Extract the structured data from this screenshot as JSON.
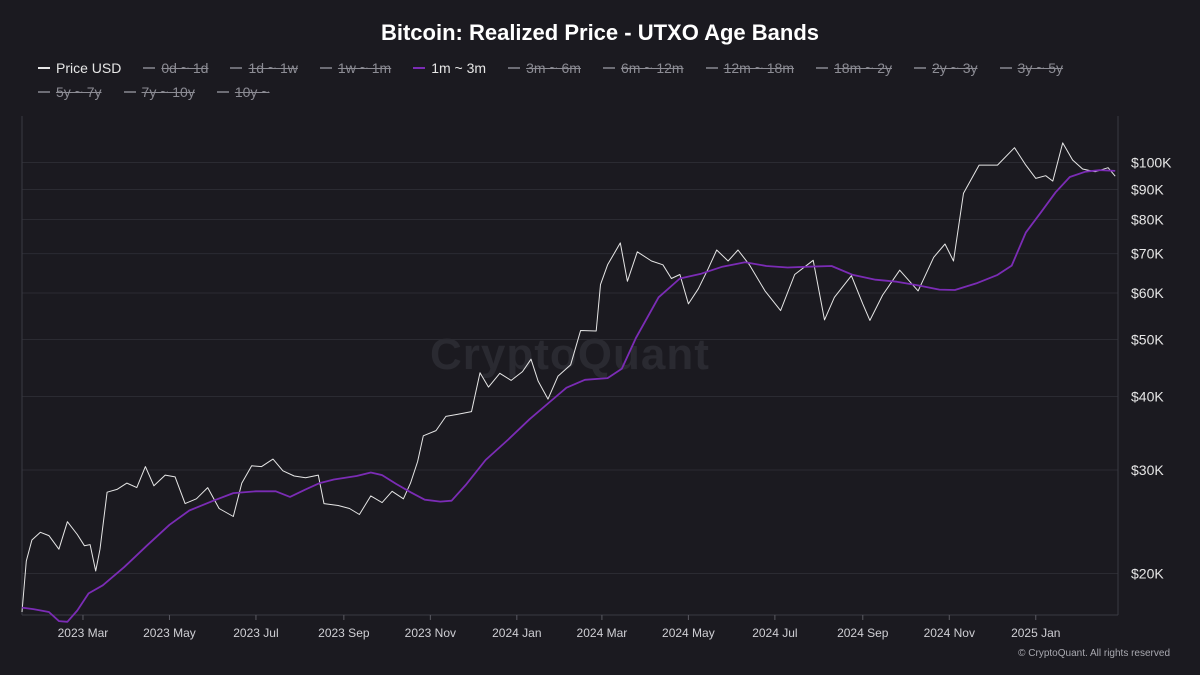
{
  "chart_data": {
    "type": "line",
    "title": "Bitcoin: Realized Price - UTXO Age Bands",
    "xlabel": "",
    "ylabel": "",
    "y_scale": "log",
    "ylim": [
      17000,
      120000
    ],
    "xlim": [
      "2023-01-17",
      "2025-02-28"
    ],
    "grid": true,
    "legend_position": "top",
    "watermark": "CryptoQuant",
    "footer": "© CryptoQuant. All rights reserved",
    "x_ticks": [
      {
        "label": "2023 Mar",
        "date": "2023-03-01"
      },
      {
        "label": "2023 May",
        "date": "2023-05-01"
      },
      {
        "label": "2023 Jul",
        "date": "2023-07-01"
      },
      {
        "label": "2023 Sep",
        "date": "2023-09-01"
      },
      {
        "label": "2023 Nov",
        "date": "2023-11-01"
      },
      {
        "label": "2024 Jan",
        "date": "2024-01-01"
      },
      {
        "label": "2024 Mar",
        "date": "2024-03-01"
      },
      {
        "label": "2024 May",
        "date": "2024-05-01"
      },
      {
        "label": "2024 Jul",
        "date": "2024-07-01"
      },
      {
        "label": "2024 Sep",
        "date": "2024-09-01"
      },
      {
        "label": "2024 Nov",
        "date": "2024-11-01"
      },
      {
        "label": "2025 Jan",
        "date": "2025-01-01"
      }
    ],
    "y_ticks": [
      {
        "label": "$20K",
        "value": 20000
      },
      {
        "label": "$30K",
        "value": 30000
      },
      {
        "label": "$40K",
        "value": 40000
      },
      {
        "label": "$50K",
        "value": 50000
      },
      {
        "label": "$60K",
        "value": 60000
      },
      {
        "label": "$70K",
        "value": 70000
      },
      {
        "label": "$80K",
        "value": 80000
      },
      {
        "label": "$90K",
        "value": 90000
      },
      {
        "label": "$100K",
        "value": 100000
      }
    ],
    "legend": [
      {
        "label": "Price USD",
        "color": "#e6e6e6",
        "active": true
      },
      {
        "label": "0d ~ 1d",
        "color": "#6d6d75",
        "active": false
      },
      {
        "label": "1d ~ 1w",
        "color": "#6d6d75",
        "active": false
      },
      {
        "label": "1w ~ 1m",
        "color": "#6d6d75",
        "active": false
      },
      {
        "label": "1m ~ 3m",
        "color": "#7b2cb5",
        "active": true
      },
      {
        "label": "3m ~ 6m",
        "color": "#6d6d75",
        "active": false
      },
      {
        "label": "6m ~ 12m",
        "color": "#6d6d75",
        "active": false
      },
      {
        "label": "12m ~ 18m",
        "color": "#6d6d75",
        "active": false
      },
      {
        "label": "18m ~ 2y",
        "color": "#6d6d75",
        "active": false
      },
      {
        "label": "2y ~ 3y",
        "color": "#6d6d75",
        "active": false
      },
      {
        "label": "3y ~ 5y",
        "color": "#6d6d75",
        "active": false
      },
      {
        "label": "5y ~ 7y",
        "color": "#6d6d75",
        "active": false
      },
      {
        "label": "7y ~ 10y",
        "color": "#6d6d75",
        "active": false
      },
      {
        "label": "10y ~",
        "color": "#6d6d75",
        "active": false
      }
    ],
    "series": [
      {
        "name": "Price USD",
        "color": "#e6e6e6",
        "points": [
          [
            "2023-01-17",
            17200
          ],
          [
            "2023-01-20",
            21000
          ],
          [
            "2023-01-24",
            22800
          ],
          [
            "2023-01-30",
            23500
          ],
          [
            "2023-02-05",
            23200
          ],
          [
            "2023-02-12",
            22000
          ],
          [
            "2023-02-18",
            24500
          ],
          [
            "2023-02-25",
            23300
          ],
          [
            "2023-03-02",
            22300
          ],
          [
            "2023-03-06",
            22400
          ],
          [
            "2023-03-10",
            20200
          ],
          [
            "2023-03-13",
            22000
          ],
          [
            "2023-03-18",
            27500
          ],
          [
            "2023-03-25",
            27800
          ],
          [
            "2023-04-01",
            28500
          ],
          [
            "2023-04-08",
            28000
          ],
          [
            "2023-04-14",
            30400
          ],
          [
            "2023-04-20",
            28200
          ],
          [
            "2023-04-28",
            29400
          ],
          [
            "2023-05-05",
            29200
          ],
          [
            "2023-05-12",
            26300
          ],
          [
            "2023-05-20",
            26800
          ],
          [
            "2023-05-28",
            28000
          ],
          [
            "2023-06-05",
            25800
          ],
          [
            "2023-06-15",
            25000
          ],
          [
            "2023-06-21",
            28500
          ],
          [
            "2023-06-28",
            30500
          ],
          [
            "2023-07-05",
            30400
          ],
          [
            "2023-07-13",
            31300
          ],
          [
            "2023-07-20",
            29900
          ],
          [
            "2023-07-28",
            29300
          ],
          [
            "2023-08-05",
            29100
          ],
          [
            "2023-08-14",
            29400
          ],
          [
            "2023-08-18",
            26300
          ],
          [
            "2023-08-28",
            26100
          ],
          [
            "2023-09-05",
            25800
          ],
          [
            "2023-09-12",
            25200
          ],
          [
            "2023-09-20",
            27100
          ],
          [
            "2023-09-28",
            26400
          ],
          [
            "2023-10-05",
            27600
          ],
          [
            "2023-10-13",
            26800
          ],
          [
            "2023-10-18",
            28500
          ],
          [
            "2023-10-23",
            31000
          ],
          [
            "2023-10-27",
            34300
          ],
          [
            "2023-11-05",
            35000
          ],
          [
            "2023-11-12",
            37000
          ],
          [
            "2023-11-20",
            37300
          ],
          [
            "2023-11-30",
            37700
          ],
          [
            "2023-12-06",
            43900
          ],
          [
            "2023-12-12",
            41500
          ],
          [
            "2023-12-20",
            43800
          ],
          [
            "2023-12-28",
            42600
          ],
          [
            "2024-01-05",
            44100
          ],
          [
            "2024-01-11",
            46300
          ],
          [
            "2024-01-16",
            42500
          ],
          [
            "2024-01-23",
            39600
          ],
          [
            "2024-01-30",
            43300
          ],
          [
            "2024-02-08",
            45300
          ],
          [
            "2024-02-15",
            51800
          ],
          [
            "2024-02-26",
            51700
          ],
          [
            "2024-02-29",
            62000
          ],
          [
            "2024-03-05",
            67000
          ],
          [
            "2024-03-14",
            73000
          ],
          [
            "2024-03-19",
            62800
          ],
          [
            "2024-03-26",
            70500
          ],
          [
            "2024-04-05",
            68000
          ],
          [
            "2024-04-13",
            67000
          ],
          [
            "2024-04-19",
            63500
          ],
          [
            "2024-04-25",
            64500
          ],
          [
            "2024-05-01",
            57500
          ],
          [
            "2024-05-08",
            61000
          ],
          [
            "2024-05-15",
            66000
          ],
          [
            "2024-05-21",
            71000
          ],
          [
            "2024-05-29",
            68000
          ],
          [
            "2024-06-05",
            71000
          ],
          [
            "2024-06-13",
            67000
          ],
          [
            "2024-06-24",
            60500
          ],
          [
            "2024-07-05",
            56000
          ],
          [
            "2024-07-15",
            64500
          ],
          [
            "2024-07-28",
            68200
          ],
          [
            "2024-08-05",
            54000
          ],
          [
            "2024-08-12",
            59000
          ],
          [
            "2024-08-24",
            64200
          ],
          [
            "2024-09-01",
            57500
          ],
          [
            "2024-09-06",
            53900
          ],
          [
            "2024-09-15",
            59500
          ],
          [
            "2024-09-27",
            65600
          ],
          [
            "2024-10-10",
            60500
          ],
          [
            "2024-10-21",
            69000
          ],
          [
            "2024-10-29",
            72700
          ],
          [
            "2024-11-04",
            68000
          ],
          [
            "2024-11-11",
            88700
          ],
          [
            "2024-11-22",
            99000
          ],
          [
            "2024-12-05",
            99000
          ],
          [
            "2024-12-17",
            106000
          ],
          [
            "2024-12-25",
            99000
          ],
          [
            "2025-01-01",
            94000
          ],
          [
            "2025-01-08",
            95000
          ],
          [
            "2025-01-13",
            93000
          ],
          [
            "2025-01-20",
            108000
          ],
          [
            "2025-01-27",
            101000
          ],
          [
            "2025-02-03",
            97500
          ],
          [
            "2025-02-12",
            96500
          ],
          [
            "2025-02-21",
            98000
          ],
          [
            "2025-02-26",
            94800
          ]
        ]
      },
      {
        "name": "1m ~ 3m",
        "color": "#7b2cb5",
        "points": [
          [
            "2023-01-17",
            17500
          ],
          [
            "2023-01-25",
            17400
          ],
          [
            "2023-02-05",
            17200
          ],
          [
            "2023-02-12",
            16600
          ],
          [
            "2023-02-18",
            16550
          ],
          [
            "2023-02-25",
            17300
          ],
          [
            "2023-03-05",
            18500
          ],
          [
            "2023-03-15",
            19100
          ],
          [
            "2023-03-30",
            20500
          ],
          [
            "2023-04-15",
            22300
          ],
          [
            "2023-05-01",
            24200
          ],
          [
            "2023-05-15",
            25600
          ],
          [
            "2023-06-01",
            26600
          ],
          [
            "2023-06-15",
            27400
          ],
          [
            "2023-07-01",
            27600
          ],
          [
            "2023-07-15",
            27600
          ],
          [
            "2023-07-25",
            27000
          ],
          [
            "2023-08-05",
            27800
          ],
          [
            "2023-08-15",
            28500
          ],
          [
            "2023-08-25",
            28900
          ],
          [
            "2023-09-10",
            29300
          ],
          [
            "2023-09-20",
            29700
          ],
          [
            "2023-09-28",
            29400
          ],
          [
            "2023-10-08",
            28400
          ],
          [
            "2023-10-18",
            27500
          ],
          [
            "2023-10-28",
            26700
          ],
          [
            "2023-11-08",
            26500
          ],
          [
            "2023-11-16",
            26600
          ],
          [
            "2023-11-26",
            28300
          ],
          [
            "2023-12-10",
            31200
          ],
          [
            "2023-12-26",
            33800
          ],
          [
            "2024-01-10",
            36600
          ],
          [
            "2024-01-25",
            39300
          ],
          [
            "2024-02-05",
            41400
          ],
          [
            "2024-02-18",
            42700
          ],
          [
            "2024-03-05",
            43000
          ],
          [
            "2024-03-15",
            44600
          ],
          [
            "2024-03-25",
            50300
          ],
          [
            "2024-04-10",
            59000
          ],
          [
            "2024-04-25",
            63500
          ],
          [
            "2024-05-10",
            64700
          ],
          [
            "2024-05-25",
            66500
          ],
          [
            "2024-06-10",
            67700
          ],
          [
            "2024-06-25",
            66700
          ],
          [
            "2024-07-10",
            66300
          ],
          [
            "2024-07-25",
            66500
          ],
          [
            "2024-08-10",
            66700
          ],
          [
            "2024-08-25",
            64400
          ],
          [
            "2024-09-10",
            63200
          ],
          [
            "2024-09-25",
            62700
          ],
          [
            "2024-10-10",
            61800
          ],
          [
            "2024-10-25",
            60800
          ],
          [
            "2024-11-05",
            60700
          ],
          [
            "2024-11-20",
            62300
          ],
          [
            "2024-12-05",
            64400
          ],
          [
            "2024-12-15",
            66800
          ],
          [
            "2024-12-25",
            76000
          ],
          [
            "2025-01-05",
            82500
          ],
          [
            "2025-01-15",
            89000
          ],
          [
            "2025-01-25",
            94500
          ],
          [
            "2025-02-05",
            96500
          ],
          [
            "2025-02-15",
            97100
          ],
          [
            "2025-02-26",
            96800
          ]
        ]
      }
    ]
  }
}
